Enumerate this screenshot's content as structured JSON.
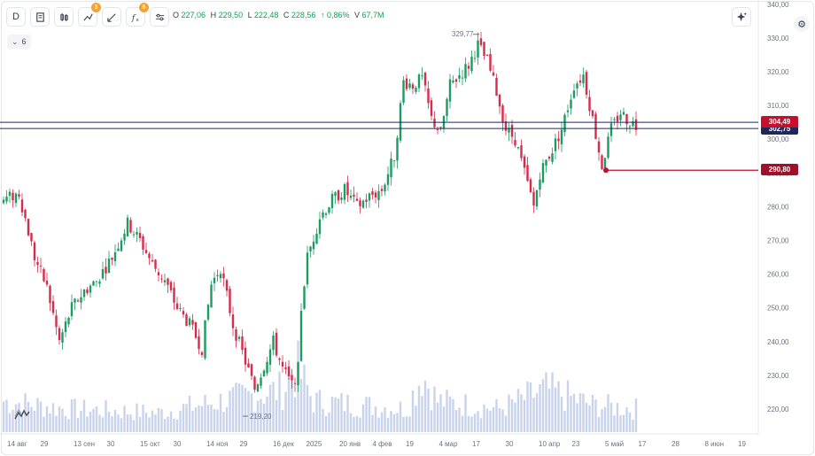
{
  "toolbar": {
    "interval_label": "D",
    "indicators_badge": "3",
    "functions_badge": "6",
    "icons": [
      "doc-icon",
      "candles-icon",
      "indicators-icon",
      "drawing-icon",
      "fx-icon",
      "settings-sliders-icon"
    ]
  },
  "ohlc": {
    "o_label": "O",
    "o_value": "227,06",
    "h_label": "H",
    "h_value": "229,50",
    "l_label": "L",
    "l_value": "222,48",
    "c_label": "C",
    "c_value": "228,56",
    "change": "↑ 0,86%",
    "v_label": "V",
    "v_value": "67,7M"
  },
  "collapse": {
    "count": "6"
  },
  "price_labels": {
    "current": "304,49",
    "current_under": "302,75",
    "line": "290,80"
  },
  "annotations": {
    "high": "329,77",
    "low": "219,20"
  },
  "colors": {
    "up": "#1e9b62",
    "down": "#d62c4b",
    "volume": "#c9d3ec",
    "accent": "#c4102e",
    "dark_line": "#1c2a5a"
  },
  "chart_data": {
    "type": "candlestick",
    "y_axis": {
      "min": 214,
      "max": 341,
      "ticks": [
        "340,00",
        "330,00",
        "320,00",
        "310,00",
        "300,00",
        "290,00",
        "280,00",
        "270,00",
        "260,00",
        "250,00",
        "240,00",
        "230,00",
        "220,00"
      ]
    },
    "x_axis": {
      "ticks": [
        "14 авг",
        "29",
        "13 сен",
        "30",
        "15 окт",
        "30",
        "14 ноя",
        "29",
        "16 дек",
        "2025",
        "20 янв",
        "4 фев",
        "19",
        "4 мар",
        "17",
        "30",
        "10 апр",
        "23",
        "5 май",
        "17",
        "28",
        "8 июн",
        "19"
      ]
    },
    "close_anchors": [
      [
        0,
        282
      ],
      [
        5,
        284
      ],
      [
        10,
        265
      ],
      [
        14,
        256
      ],
      [
        18,
        240
      ],
      [
        22,
        250
      ],
      [
        26,
        255
      ],
      [
        30,
        258
      ],
      [
        35,
        265
      ],
      [
        40,
        275
      ],
      [
        44,
        270
      ],
      [
        48,
        263
      ],
      [
        52,
        258
      ],
      [
        56,
        250
      ],
      [
        60,
        245
      ],
      [
        64,
        238
      ],
      [
        67,
        257
      ],
      [
        70,
        262
      ],
      [
        74,
        245
      ],
      [
        78,
        234
      ],
      [
        81,
        226
      ],
      [
        84,
        233
      ],
      [
        87,
        240
      ],
      [
        90,
        232
      ],
      [
        93,
        227
      ],
      [
        95,
        232
      ],
      [
        96,
        250
      ],
      [
        98,
        265
      ],
      [
        102,
        277
      ],
      [
        106,
        282
      ],
      [
        110,
        285
      ],
      [
        114,
        280
      ],
      [
        118,
        283
      ],
      [
        122,
        285
      ],
      [
        126,
        295
      ],
      [
        129,
        317
      ],
      [
        132,
        316
      ],
      [
        135,
        318
      ],
      [
        138,
        306
      ],
      [
        141,
        302
      ],
      [
        144,
        316
      ],
      [
        147,
        319
      ],
      [
        150,
        322
      ],
      [
        153,
        328
      ],
      [
        156,
        323
      ],
      [
        159,
        314
      ],
      [
        162,
        303
      ],
      [
        165,
        300
      ],
      [
        168,
        290
      ],
      [
        171,
        280
      ],
      [
        173,
        290
      ],
      [
        177,
        297
      ],
      [
        180,
        303
      ],
      [
        184,
        316
      ],
      [
        187,
        319
      ],
      [
        190,
        306
      ],
      [
        193,
        292
      ],
      [
        196,
        303
      ],
      [
        199,
        308
      ],
      [
        201,
        306
      ],
      [
        204,
        304
      ]
    ],
    "volume_anchors": [
      [
        0,
        40
      ],
      [
        20,
        30
      ],
      [
        50,
        25
      ],
      [
        90,
        55
      ],
      [
        95,
        80
      ],
      [
        100,
        40
      ],
      [
        130,
        30
      ],
      [
        135,
        75
      ],
      [
        140,
        40
      ],
      [
        160,
        30
      ],
      [
        175,
        55
      ],
      [
        190,
        35
      ],
      [
        204,
        30
      ]
    ],
    "last_price": 304.49,
    "horizontal_line": 290.8,
    "high_marker": {
      "price": 329.77,
      "label": "329,77"
    },
    "low_marker": {
      "price": 219.2,
      "label": "219,20"
    }
  }
}
